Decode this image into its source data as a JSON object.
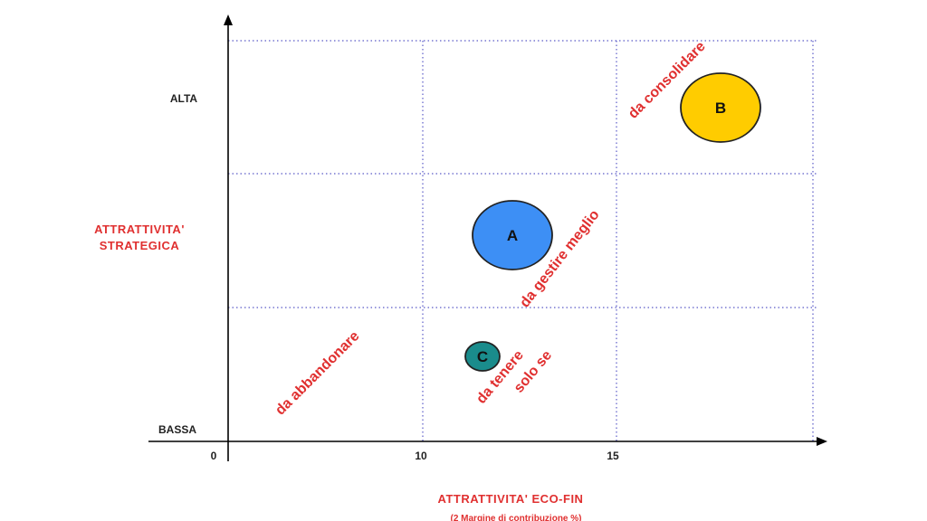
{
  "chart_data": {
    "type": "scatter",
    "title": "",
    "xlabel": "ATTRATTIVITA' ECO-FIN",
    "xlabel_sub": "(2 Margine di contribuzione %)",
    "ylabel_lines": [
      "ATTRATTIVITA'",
      "STRATEGICA"
    ],
    "x_ticks": [
      "0",
      "10",
      "15"
    ],
    "y_ticks": [
      "BASSA",
      "ALTA"
    ],
    "grid": true,
    "bubbles": [
      {
        "label": "A",
        "color": "#3d8ff5",
        "size": "large"
      },
      {
        "label": "B",
        "color": "#ffcc00",
        "size": "large"
      },
      {
        "label": "C",
        "color": "#1a8c8c",
        "size": "small"
      }
    ],
    "annotations": [
      {
        "id": "consolidare",
        "lines": [
          "da consolidare"
        ]
      },
      {
        "id": "gestire",
        "lines": [
          "da gestire meglio"
        ]
      },
      {
        "id": "abbandonare",
        "lines": [
          "da abbandonare"
        ]
      },
      {
        "id": "tenere",
        "lines": [
          "da tenere",
          "solo se"
        ]
      }
    ],
    "colors": {
      "text_red": "#e03030",
      "grid": "#5b5bc8",
      "axis": "#000000"
    }
  }
}
